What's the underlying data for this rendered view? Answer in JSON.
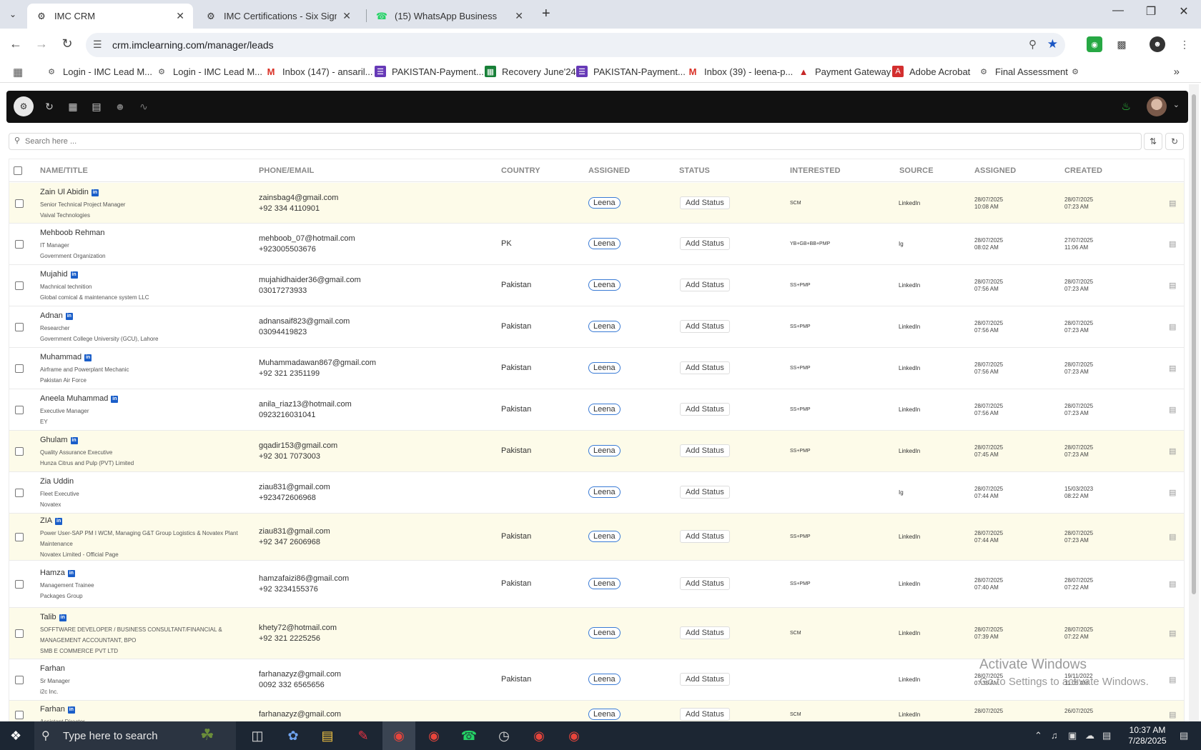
{
  "browser": {
    "tabs": [
      {
        "title": "IMC CRM",
        "icon": "imc-logo-icon"
      },
      {
        "title": "IMC Certifications - Six Sigma G",
        "icon": "imc-logo-icon"
      },
      {
        "title": "(15) WhatsApp Business",
        "icon": "whatsapp-icon"
      }
    ],
    "url": "crm.imclearning.com/manager/leads",
    "bookmarks": [
      {
        "label": "Login - IMC Lead M...",
        "icon": "imc-logo-icon",
        "color": "#5a5a5a"
      },
      {
        "label": "Login - IMC Lead M...",
        "icon": "imc-logo-icon",
        "color": "#5a5a5a"
      },
      {
        "label": "Inbox (147) - ansaril...",
        "icon": "gmail-icon",
        "color": "#d93025"
      },
      {
        "label": "PAKISTAN-Payment...",
        "icon": "forms-icon",
        "color": "#673ab7"
      },
      {
        "label": "Recovery June'24",
        "icon": "sheets-icon",
        "color": "#188038"
      },
      {
        "label": "PAKISTAN-Payment...",
        "icon": "forms-icon",
        "color": "#673ab7"
      },
      {
        "label": "Inbox (39) - leena-p...",
        "icon": "gmail-icon",
        "color": "#d93025"
      },
      {
        "label": "Payment Gateway",
        "icon": "triangle-icon",
        "color": "#c62828"
      },
      {
        "label": "Adobe Acrobat",
        "icon": "acrobat-icon",
        "color": "#d32f2f"
      },
      {
        "label": "Final Assessment",
        "icon": "imc-logo-icon",
        "color": "#5a5a5a"
      }
    ]
  },
  "search": {
    "placeholder": "Search here ..."
  },
  "table": {
    "headers": [
      "NAME/TITLE",
      "PHONE/EMAIL",
      "COUNTRY",
      "ASSIGNED",
      "STATUS",
      "INTERESTED",
      "SOURCE",
      "ASSIGNED",
      "CREATED"
    ],
    "rows": [
      {
        "name": "Zain Ul Abidin",
        "linkedin": true,
        "title": "Senior Technical Project Manager",
        "org": "Vaival Technologies",
        "email": "zainsbag4@gmail.com",
        "phone": "+92 334 4110901",
        "country": "",
        "assigned": "Leena",
        "status": "Add Status",
        "interested": "SCM",
        "source": "LinkedIn",
        "assigned_date": "28/07/2025",
        "assigned_time": "10:08 AM",
        "created_date": "28/07/2025",
        "created_time": "07:23 AM",
        "highlight": true
      },
      {
        "name": "Mehboob Rehman",
        "linkedin": false,
        "title": "IT Manager",
        "org": "Government Organization",
        "email": "mehboob_07@hotmail.com",
        "phone": "+923005503676",
        "country": "PK",
        "assigned": "Leena",
        "status": "Add Status",
        "interested": "YB+GB+BB+PMP",
        "source": "Ig",
        "assigned_date": "28/07/2025",
        "assigned_time": "08:02 AM",
        "created_date": "27/07/2025",
        "created_time": "11:06 AM",
        "highlight": false
      },
      {
        "name": "Mujahid",
        "linkedin": true,
        "title": "Machnical technition",
        "org": "Global comical & maintenance system LLC",
        "email": "mujahidhaider36@gmail.com",
        "phone": "03017273933",
        "country": "Pakistan",
        "assigned": "Leena",
        "status": "Add Status",
        "interested": "SS+PMP",
        "source": "LinkedIn",
        "assigned_date": "28/07/2025",
        "assigned_time": "07:56 AM",
        "created_date": "28/07/2025",
        "created_time": "07:23 AM",
        "highlight": false
      },
      {
        "name": "Adnan",
        "linkedin": true,
        "title": "Researcher",
        "org": "Government College University (GCU), Lahore",
        "email": "adnansaif823@gmail.com",
        "phone": "03094419823",
        "country": "Pakistan",
        "assigned": "Leena",
        "status": "Add Status",
        "interested": "SS+PMP",
        "source": "LinkedIn",
        "assigned_date": "28/07/2025",
        "assigned_time": "07:56 AM",
        "created_date": "28/07/2025",
        "created_time": "07:23 AM",
        "highlight": false
      },
      {
        "name": "Muhammad",
        "linkedin": true,
        "title": "Airframe and Powerplant Mechanic",
        "org": "Pakistan Air Force",
        "email": "Muhammadawan867@gmail.com",
        "phone": "+92 321 2351199",
        "country": "Pakistan",
        "assigned": "Leena",
        "status": "Add Status",
        "interested": "SS+PMP",
        "source": "LinkedIn",
        "assigned_date": "28/07/2025",
        "assigned_time": "07:56 AM",
        "created_date": "28/07/2025",
        "created_time": "07:23 AM",
        "highlight": false
      },
      {
        "name": "Aneela Muhammad",
        "linkedin": true,
        "title": "Executive Manager",
        "org": "EY",
        "email": "anila_riaz13@hotmail.com",
        "phone": "0923216031041",
        "country": "Pakistan",
        "assigned": "Leena",
        "status": "Add Status",
        "interested": "SS+PMP",
        "source": "LinkedIn",
        "assigned_date": "28/07/2025",
        "assigned_time": "07:56 AM",
        "created_date": "28/07/2025",
        "created_time": "07:23 AM",
        "highlight": false
      },
      {
        "name": "Ghulam",
        "linkedin": true,
        "title": "Quality Assurance Executive",
        "org": "Hunza Citrus and Pulp (PVT) Limited",
        "email": "gqadir153@gmail.com",
        "phone": "+92 301 7073003",
        "country": "Pakistan",
        "assigned": "Leena",
        "status": "Add Status",
        "interested": "SS+PMP",
        "source": "LinkedIn",
        "assigned_date": "28/07/2025",
        "assigned_time": "07:45 AM",
        "created_date": "28/07/2025",
        "created_time": "07:23 AM",
        "highlight": true
      },
      {
        "name": "Zia Uddin",
        "linkedin": false,
        "title": "Fleet Executive",
        "org": "Novatex",
        "email": "ziau831@gmail.com",
        "phone": "+923472606968",
        "country": "",
        "assigned": "Leena",
        "status": "Add Status",
        "interested": "",
        "source": "Ig",
        "assigned_date": "28/07/2025",
        "assigned_time": "07:44 AM",
        "created_date": "15/03/2023",
        "created_time": "08:22 AM",
        "highlight": false
      },
      {
        "name": "ZIA",
        "linkedin": true,
        "title": "Power User-SAP PM I WCM, Managing G&T Group Logistics & Novatex Plant Maintenance",
        "org": "Novatex Limited - Official Page",
        "email": "ziau831@gmail.com",
        "phone": "+92 347 2606968",
        "country": "Pakistan",
        "assigned": "Leena",
        "status": "Add Status",
        "interested": "SS+PMP",
        "source": "LinkedIn",
        "assigned_date": "28/07/2025",
        "assigned_time": "07:44 AM",
        "created_date": "28/07/2025",
        "created_time": "07:23 AM",
        "highlight": true
      },
      {
        "name": "Hamza",
        "linkedin": true,
        "title": "Management Trainee",
        "org": "Packages Group",
        "email": "hamzafaizi86@gmail.com",
        "phone": "+92 3234155376",
        "country": "Pakistan",
        "assigned": "Leena",
        "status": "Add Status",
        "interested": "SS+PMP",
        "source": "LinkedIn",
        "assigned_date": "28/07/2025",
        "assigned_time": "07:40 AM",
        "created_date": "28/07/2025",
        "created_time": "07:22 AM",
        "highlight": false
      },
      {
        "name": "Talib",
        "linkedin": true,
        "title": "SOFFTWARE DEVELOPER / BUSINESS CONSULTANT/FINANCIAL & MANAGEMENT ACCOUNTANT, BPO",
        "org": "SMB E COMMERCE PVT LTD",
        "email": "khety72@hotmail.com",
        "phone": "+92 321 2225256",
        "country": "",
        "assigned": "Leena",
        "status": "Add Status",
        "interested": "SCM",
        "source": "LinkedIn",
        "assigned_date": "28/07/2025",
        "assigned_time": "07:39 AM",
        "created_date": "28/07/2025",
        "created_time": "07:22 AM",
        "highlight": true
      },
      {
        "name": "Farhan",
        "linkedin": false,
        "title": "Sr Manager",
        "org": "i2c Inc.",
        "email": "farhanazyz@gmail.com",
        "phone": "0092 332 6565656",
        "country": "Pakistan",
        "assigned": "Leena",
        "status": "Add Status",
        "interested": "",
        "source": "LinkedIn",
        "assigned_date": "28/07/2025",
        "assigned_time": "07:35 AM",
        "created_date": "19/11/2022",
        "created_time": "11:05 AM",
        "highlight": false
      },
      {
        "name": "Farhan",
        "linkedin": true,
        "title": "Assistant Director",
        "org": "",
        "email": "farhanazyz@gmail.com",
        "phone": "",
        "country": "",
        "assigned": "Leena",
        "status": "Add Status",
        "interested": "SCM",
        "source": "LinkedIn",
        "assigned_date": "28/07/2025",
        "assigned_time": "",
        "created_date": "26/07/2025",
        "created_time": "",
        "highlight": true
      }
    ]
  },
  "watermark": {
    "line1": "Activate Windows",
    "line2": "Go to Settings to activate Windows."
  },
  "taskbar": {
    "search_placeholder": "Type here to search",
    "time": "10:37 AM",
    "date": "7/28/2025"
  }
}
